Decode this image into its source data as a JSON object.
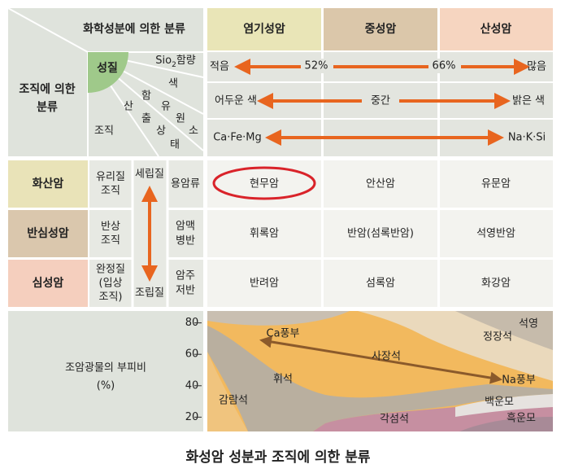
{
  "header": {
    "chemical_classification": "화학성분에 의한 분류",
    "texture_classification": [
      "조직에 의한",
      "분류"
    ],
    "property": "성질",
    "sio2": {
      "base": "Sio",
      "subscript": "2",
      "suffix": "함량"
    },
    "color": "색",
    "elements": [
      "함",
      "유",
      "원",
      "소"
    ],
    "occurrence": [
      "산",
      "출",
      "상",
      "태"
    ],
    "texture": "조직"
  },
  "columns": [
    "염기성암",
    "중성암",
    "산성암"
  ],
  "properties": {
    "sio2": {
      "low": "적음",
      "mid1": "52%",
      "mid2": "66%",
      "high": "많음"
    },
    "color": {
      "dark": "어두운 색",
      "mid": "중간",
      "light": "밝은 색"
    },
    "elements": {
      "left": "Ca·Fe·Mg",
      "right": "Na·K·Si"
    }
  },
  "rows": [
    {
      "name": "화산암",
      "texture": [
        "유리질",
        "조직"
      ],
      "occurrence": [
        "용암류"
      ],
      "rocks": [
        "현무암",
        "안산암",
        "유문암"
      ]
    },
    {
      "name": "반심성암",
      "texture": [
        "반상",
        "조직"
      ],
      "occurrence": [
        "암맥",
        "병반"
      ],
      "rocks": [
        "휘록암",
        "반암(섬록반암)",
        "석영반암"
      ]
    },
    {
      "name": "심성암",
      "texture": [
        "완정질",
        "(입상",
        "조직)"
      ],
      "occurrence": [
        "암주",
        "저반"
      ],
      "rocks": [
        "반려암",
        "섬록암",
        "화강암"
      ]
    }
  ],
  "grain_size": {
    "fine": "세립질",
    "coarse": "조립질"
  },
  "minerals": {
    "title": "조암광물의 부피비",
    "unit": "(%)",
    "ticks": [
      80,
      60,
      40,
      20
    ],
    "labels": {
      "ca_rich": "Ca풍부",
      "plagioclase": "사장석",
      "na_rich": "Na풍부",
      "pyroxene": "휘석",
      "olivine": "감람석",
      "amphibole": "각섬석",
      "biotite": "흑운모",
      "muscovite": "백운모",
      "orthoclase": "정장석",
      "quartz": "석영"
    }
  },
  "caption": "화성암 성분과 조직에 의한 분류"
}
